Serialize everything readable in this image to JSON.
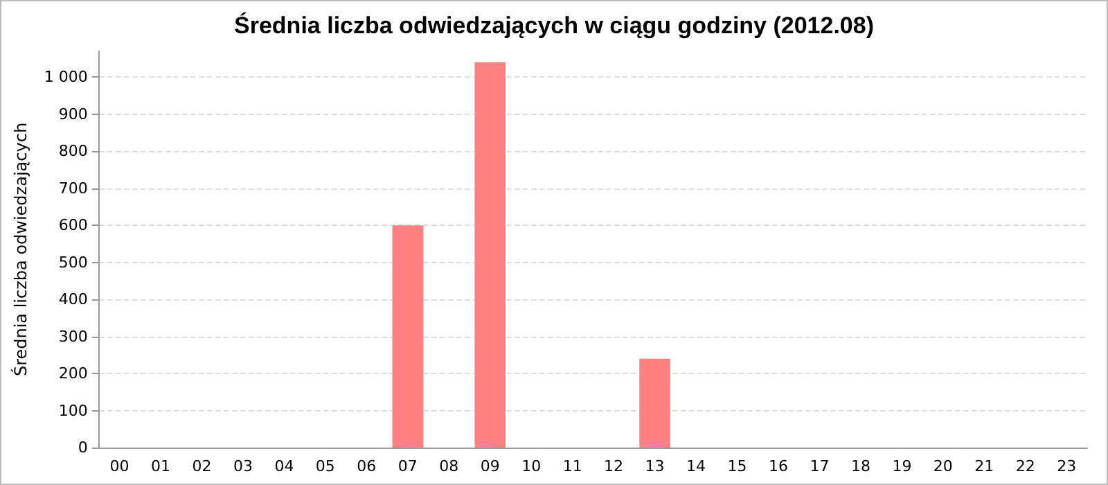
{
  "chart_data": {
    "type": "bar",
    "title": "Średnia liczba odwiedzających w ciągu godziny (2012.08)",
    "ylabel": "Średnia liczba odwiedzających",
    "categories": [
      "00",
      "01",
      "02",
      "03",
      "04",
      "05",
      "06",
      "07",
      "08",
      "09",
      "10",
      "11",
      "12",
      "13",
      "14",
      "15",
      "16",
      "17",
      "18",
      "19",
      "20",
      "21",
      "22",
      "23"
    ],
    "values": [
      0,
      0,
      0,
      0,
      0,
      0,
      0,
      600,
      0,
      1040,
      0,
      0,
      0,
      240,
      0,
      0,
      0,
      0,
      0,
      0,
      0,
      0,
      0,
      0
    ],
    "color": "#ff8080",
    "ylim": [
      0,
      1070
    ],
    "yticks": [
      0,
      100,
      200,
      300,
      400,
      500,
      600,
      700,
      800,
      900,
      {
        "value": 1000,
        "label": "1 000"
      }
    ],
    "grid": "y"
  }
}
